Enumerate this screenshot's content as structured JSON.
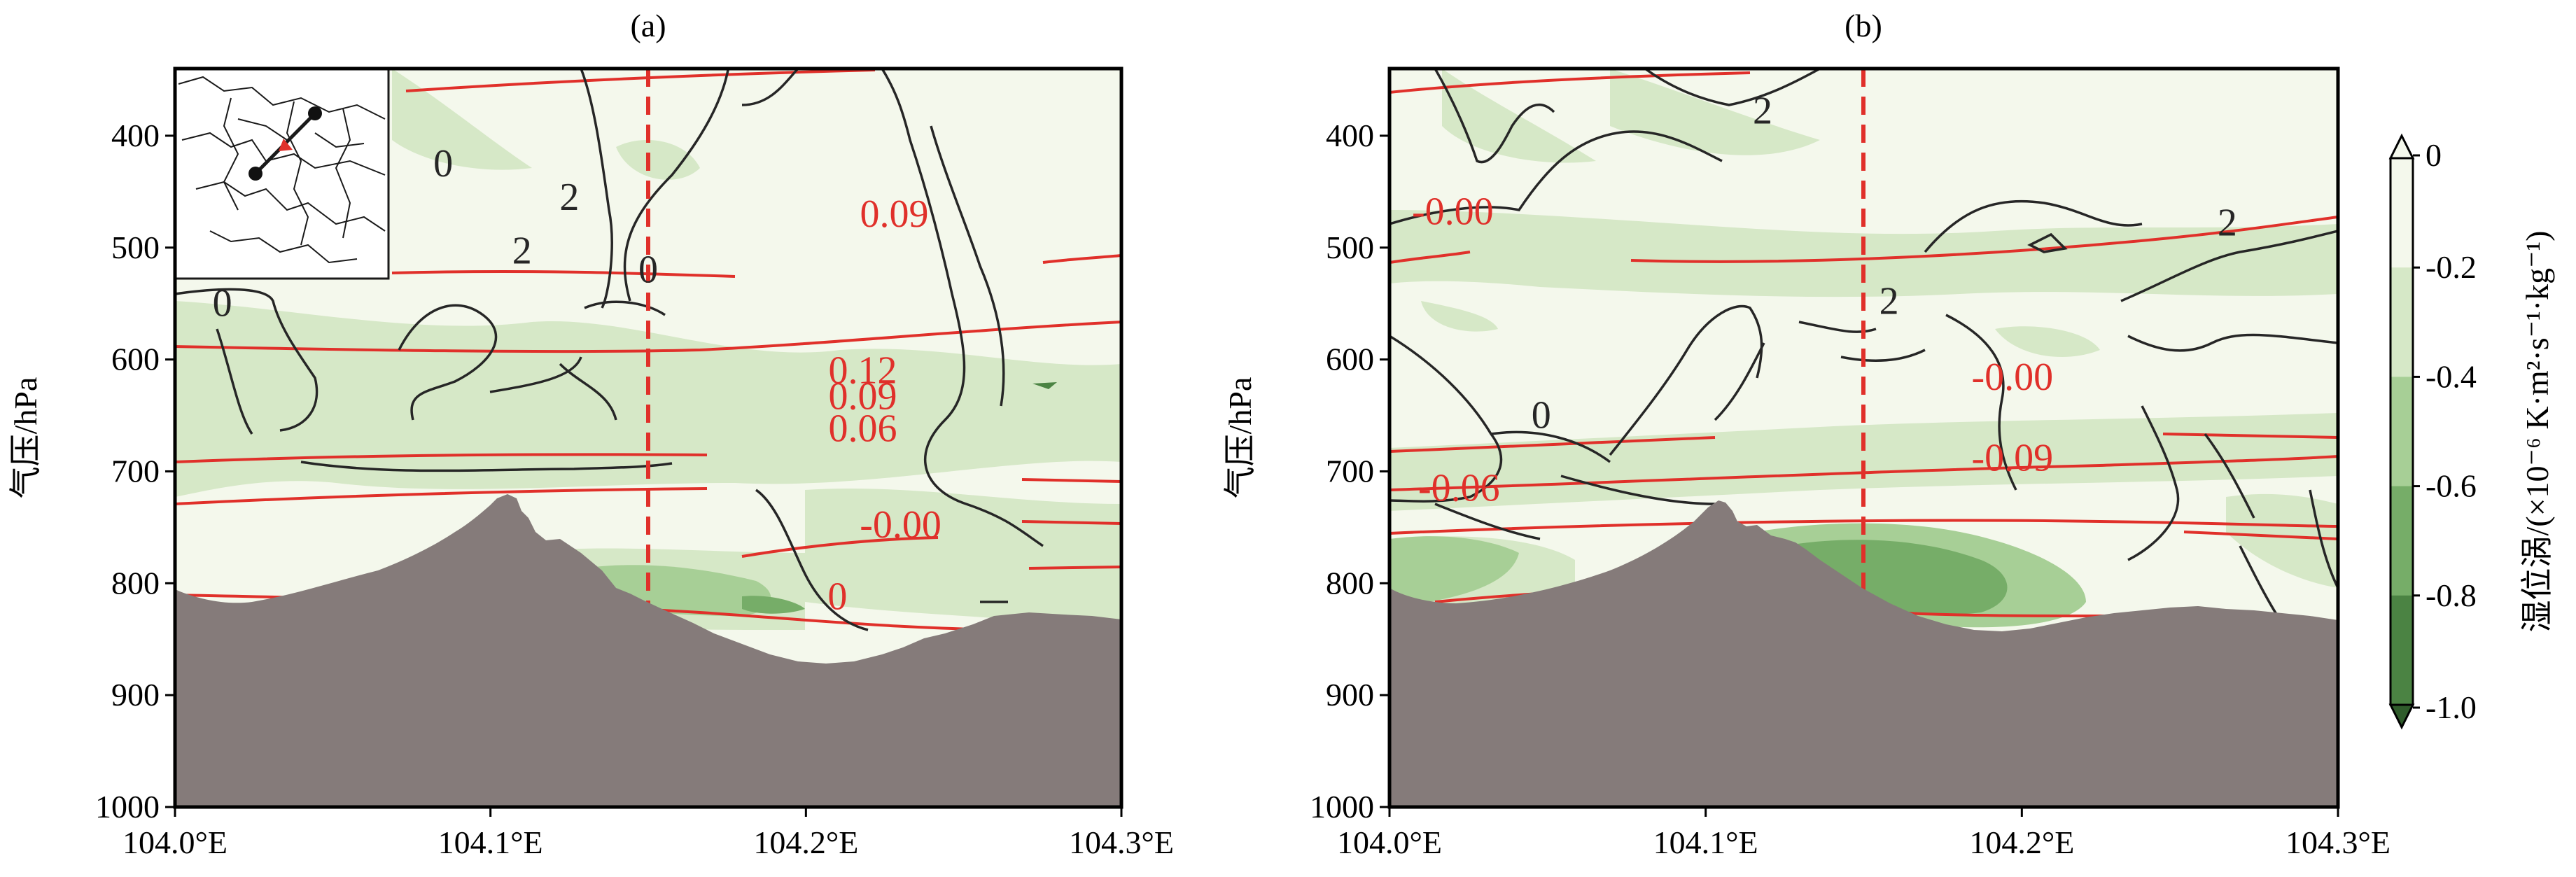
{
  "figure": {
    "colorbar": {
      "label": "湿位涡/(×10⁻⁶ K·m²·s⁻¹·kg⁻¹)",
      "levels": [
        0,
        -0.2,
        -0.4,
        -0.6,
        -0.8,
        -1.0
      ],
      "tick_labels": [
        "0",
        "-0.2",
        "-0.4",
        "-0.6",
        "-0.8",
        "-1.0"
      ],
      "colors": [
        "#f4f8ec",
        "#d6e8c7",
        "#a7cf96",
        "#76ad68",
        "#4b8343",
        "#2f5c2b"
      ],
      "extend": "both"
    },
    "terrain_color": "#857b7a",
    "contour_colors": {
      "black": "#262626",
      "red": "#e0302a"
    }
  },
  "chart_data": [
    {
      "type": "contour",
      "title": "(a)",
      "xlabel": "",
      "ylabel": "气压/hPa",
      "xlim": [
        104.0,
        104.3
      ],
      "ylim": [
        1000,
        340
      ],
      "x_ticks": [
        104.0,
        104.1,
        104.2,
        104.3
      ],
      "x_tick_labels": [
        "104.0°E",
        "104.1°E",
        "104.2°E",
        "104.3°E"
      ],
      "y_ticks": [
        400,
        500,
        600,
        700,
        800,
        900,
        1000
      ],
      "y_tick_labels": [
        "400",
        "500",
        "600",
        "700",
        "800",
        "900",
        "1000"
      ],
      "vertical_marker_x": 104.15,
      "inset_map": true,
      "black_contour_labels": [
        {
          "text": "0",
          "x": 104.085,
          "y": 425
        },
        {
          "text": "2",
          "x": 104.125,
          "y": 455
        },
        {
          "text": "2",
          "x": 104.11,
          "y": 503
        },
        {
          "text": "0",
          "x": 104.15,
          "y": 520
        },
        {
          "text": "0",
          "x": 104.015,
          "y": 550
        }
      ],
      "red_contour_labels": [
        {
          "text": "0.09",
          "x": 104.228,
          "y": 470
        },
        {
          "text": "0.12",
          "x": 104.218,
          "y": 610
        },
        {
          "text": "0.09",
          "x": 104.218,
          "y": 633
        },
        {
          "text": "0.06",
          "x": 104.218,
          "y": 662
        },
        {
          "text": "-0.00",
          "x": 104.23,
          "y": 748
        },
        {
          "text": "0",
          "x": 104.21,
          "y": 812
        }
      ]
    },
    {
      "type": "contour",
      "title": "(b)",
      "xlabel": "",
      "ylabel": "气压/hPa",
      "xlim": [
        104.0,
        104.3
      ],
      "ylim": [
        1000,
        340
      ],
      "x_ticks": [
        104.0,
        104.1,
        104.2,
        104.3
      ],
      "x_tick_labels": [
        "104.0°E",
        "104.1°E",
        "104.2°E",
        "104.3°E"
      ],
      "y_ticks": [
        400,
        500,
        600,
        700,
        800,
        900,
        1000
      ],
      "y_tick_labels": [
        "400",
        "500",
        "600",
        "700",
        "800",
        "900",
        "1000"
      ],
      "vertical_marker_x": 104.15,
      "inset_map": false,
      "black_contour_labels": [
        {
          "text": "2",
          "x": 104.118,
          "y": 378
        },
        {
          "text": "2",
          "x": 104.265,
          "y": 478
        },
        {
          "text": "2",
          "x": 104.158,
          "y": 548
        },
        {
          "text": "0",
          "x": 104.048,
          "y": 650
        }
      ],
      "red_contour_labels": [
        {
          "text": "-0.00",
          "x": 104.02,
          "y": 468
        },
        {
          "text": "-0.00",
          "x": 104.197,
          "y": 616
        },
        {
          "text": "-0.09",
          "x": 104.197,
          "y": 688
        },
        {
          "text": "-0.06",
          "x": 104.022,
          "y": 715
        }
      ]
    }
  ]
}
